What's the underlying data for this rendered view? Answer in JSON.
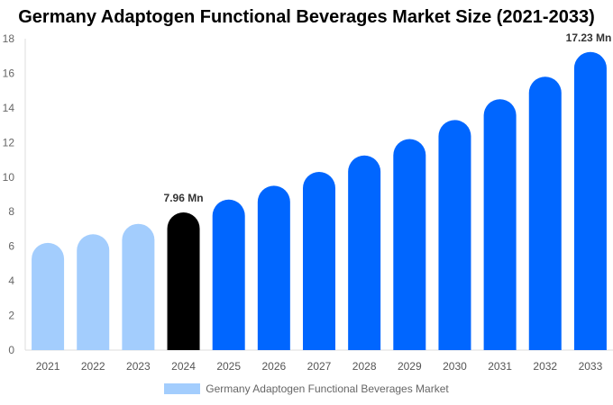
{
  "chart_data": {
    "type": "bar",
    "title": "Germany Adaptogen Functional Beverages Market Size (2021-2033)",
    "xlabel": "",
    "ylabel": "",
    "ylim": [
      0,
      18
    ],
    "yticks": [
      0,
      2,
      4,
      6,
      8,
      10,
      12,
      14,
      16,
      18
    ],
    "categories": [
      "2021",
      "2022",
      "2023",
      "2024",
      "2025",
      "2026",
      "2027",
      "2028",
      "2029",
      "2030",
      "2031",
      "2032",
      "2033"
    ],
    "series": [
      {
        "name": "Germany Adaptogen Functional Beverages Market",
        "values": [
          6.2,
          6.7,
          7.3,
          7.96,
          8.7,
          9.5,
          10.3,
          11.25,
          12.2,
          13.3,
          14.5,
          15.8,
          17.23
        ]
      }
    ],
    "data_labels": {
      "3": "7.96 Mn",
      "12": "17.23 Mn"
    },
    "colors": {
      "historical": "#a3cdfd",
      "base_year": "#000000",
      "forecast": "#0066ff"
    },
    "grid": false,
    "legend_position": "bottom"
  }
}
